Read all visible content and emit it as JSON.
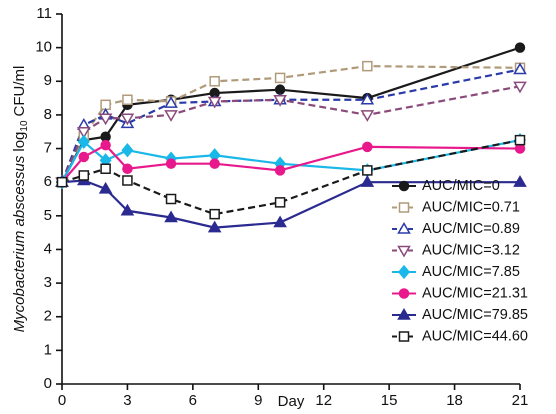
{
  "chart_data": {
    "type": "line",
    "x_label": "Day",
    "y_label": {
      "species": "Mycobacterium abscessus",
      "unit": "log",
      "subscript": "10",
      "suffix": "CFU/ml"
    },
    "x": [
      0,
      1,
      2,
      3,
      5,
      7,
      10,
      14,
      21
    ],
    "xlim": [
      0,
      21
    ],
    "xticks": [
      0,
      3,
      6,
      9,
      12,
      15,
      18,
      21
    ],
    "ylim": [
      0,
      11
    ],
    "yticks": [
      0,
      1,
      2,
      3,
      4,
      5,
      6,
      7,
      8,
      9,
      10,
      11
    ],
    "grid": false,
    "legend": "lower right",
    "series": [
      {
        "name": "AUC/MIC=0",
        "color": "#1a1a1a",
        "marker": "circle",
        "filled": true,
        "dashed": false,
        "values": [
          6,
          7.25,
          7.35,
          8.3,
          8.45,
          8.65,
          8.75,
          8.5,
          10
        ]
      },
      {
        "name": "AUC/MIC=0.71",
        "color": "#b09a7a",
        "marker": "square",
        "filled": false,
        "dashed": true,
        "values": [
          6,
          7.4,
          8.3,
          8.45,
          8.4,
          9.0,
          9.1,
          9.45,
          9.4
        ]
      },
      {
        "name": "AUC/MIC=0.89",
        "color": "#2a3aa8",
        "marker": "triangle-up",
        "filled": false,
        "dashed": true,
        "values": [
          6,
          7.7,
          8.0,
          7.75,
          8.35,
          8.4,
          8.45,
          8.45,
          9.35
        ]
      },
      {
        "name": "AUC/MIC=3.12",
        "color": "#8a4a7a",
        "marker": "triangle-down",
        "filled": false,
        "dashed": true,
        "values": [
          6,
          7.5,
          7.9,
          7.9,
          8.0,
          8.4,
          8.45,
          8.0,
          8.85
        ]
      },
      {
        "name": "AUC/MIC=7.85",
        "color": "#1ab8e8",
        "marker": "diamond",
        "filled": true,
        "dashed": false,
        "values": [
          6,
          7.2,
          6.65,
          6.95,
          6.7,
          6.8,
          6.55,
          6.35,
          7.25
        ]
      },
      {
        "name": "AUC/MIC=21.31",
        "color": "#e8198c",
        "marker": "circle",
        "filled": true,
        "dashed": false,
        "values": [
          6,
          6.75,
          7.1,
          6.4,
          6.55,
          6.55,
          6.35,
          7.05,
          7.0
        ]
      },
      {
        "name": "AUC/MIC=79.85",
        "color": "#2a2a90",
        "marker": "triangle-up",
        "filled": true,
        "dashed": false,
        "values": [
          6,
          6.05,
          5.8,
          5.15,
          4.95,
          4.65,
          4.8,
          6.0,
          6.0
        ]
      },
      {
        "name": "AUC/MIC=44.60",
        "color": "#1a1a1a",
        "marker": "square",
        "filled": false,
        "dashed": true,
        "values": [
          6,
          6.2,
          6.4,
          6.05,
          5.5,
          5.05,
          5.4,
          6.35,
          7.25
        ]
      }
    ]
  }
}
